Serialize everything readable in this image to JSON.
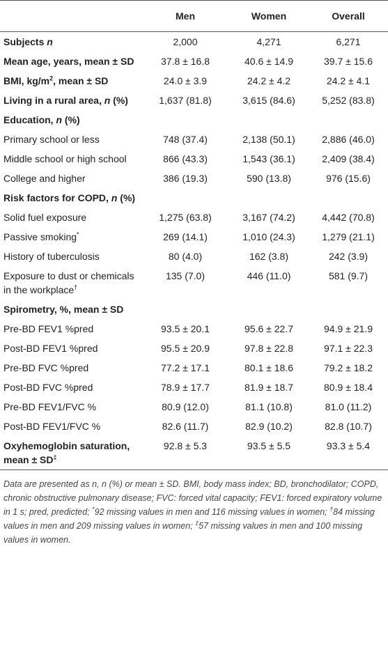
{
  "table": {
    "header": [
      "Men",
      "Women",
      "Overall"
    ],
    "rows": [
      {
        "bold": true,
        "label": [
          {
            "t": "Subjects "
          },
          {
            "i": "n"
          }
        ],
        "cells": [
          "2,000",
          "4,271",
          "6,271"
        ]
      },
      {
        "bold": true,
        "label": [
          {
            "t": "Mean age, years, mean ± SD"
          }
        ],
        "cells": [
          "37.8 ± 16.8",
          "40.6 ± 14.9",
          "39.7 ± 15.6"
        ]
      },
      {
        "bold": true,
        "label": [
          {
            "t": "BMI, kg/m"
          },
          {
            "sup": "2"
          },
          {
            "t": ", mean ± SD"
          }
        ],
        "cells": [
          "24.0 ± 3.9",
          "24.2 ± 4.2",
          "24.2 ± 4.1"
        ]
      },
      {
        "bold": true,
        "label": [
          {
            "t": "Living in a rural area, "
          },
          {
            "i": "n"
          },
          {
            "t": " (%)"
          }
        ],
        "cells": [
          "1,637 (81.8)",
          "3,615 (84.6)",
          "5,252 (83.8)"
        ]
      },
      {
        "bold": true,
        "label": [
          {
            "t": "Education, "
          },
          {
            "i": "n"
          },
          {
            "t": " (%)"
          }
        ],
        "cells": []
      },
      {
        "label": [
          {
            "t": "Primary school or less"
          }
        ],
        "cells": [
          "748 (37.4)",
          "2,138 (50.1)",
          "2,886 (46.0)"
        ]
      },
      {
        "label": [
          {
            "t": "Middle school or high school"
          }
        ],
        "cells": [
          "866 (43.3)",
          "1,543 (36.1)",
          "2,409 (38.4)"
        ]
      },
      {
        "label": [
          {
            "t": "College and higher"
          }
        ],
        "cells": [
          "386 (19.3)",
          "590 (13.8)",
          "976 (15.6)"
        ]
      },
      {
        "bold": true,
        "label": [
          {
            "t": "Risk factors for COPD, "
          },
          {
            "i": "n"
          },
          {
            "t": " (%)"
          }
        ],
        "cells": []
      },
      {
        "label": [
          {
            "t": "Solid fuel exposure"
          }
        ],
        "cells": [
          "1,275 (63.8)",
          "3,167 (74.2)",
          "4,442 (70.8)"
        ]
      },
      {
        "label": [
          {
            "t": "Passive smoking"
          },
          {
            "sup": "*"
          }
        ],
        "cells": [
          "269 (14.1)",
          "1,010 (24.3)",
          "1,279 (21.1)"
        ]
      },
      {
        "label": [
          {
            "t": "History of tuberculosis"
          }
        ],
        "cells": [
          "80 (4.0)",
          "162 (3.8)",
          "242 (3.9)"
        ]
      },
      {
        "label": [
          {
            "t": "Exposure to dust or chemicals in the workplace"
          },
          {
            "sup": "†"
          }
        ],
        "cells": [
          "135 (7.0)",
          "446 (11.0)",
          "581 (9.7)"
        ]
      },
      {
        "bold": true,
        "label": [
          {
            "t": "Spirometry, %, mean ± SD"
          }
        ],
        "cells": []
      },
      {
        "label": [
          {
            "t": "Pre-BD FEV1 %pred"
          }
        ],
        "cells": [
          "93.5 ± 20.1",
          "95.6 ± 22.7",
          "94.9 ± 21.9"
        ]
      },
      {
        "label": [
          {
            "t": "Post-BD FEV1 %pred"
          }
        ],
        "cells": [
          "95.5 ± 20.9",
          "97.8 ± 22.8",
          "97.1 ± 22.3"
        ]
      },
      {
        "label": [
          {
            "t": "Pre-BD FVC %pred"
          }
        ],
        "cells": [
          "77.2 ± 17.1",
          "80.1 ± 18.6",
          "79.2 ± 18.2"
        ]
      },
      {
        "label": [
          {
            "t": "Post-BD FVC %pred"
          }
        ],
        "cells": [
          "78.9 ± 17.7",
          "81.9 ± 18.7",
          "80.9 ± 18.4"
        ]
      },
      {
        "label": [
          {
            "t": "Pre-BD FEV1/FVC %"
          }
        ],
        "cells": [
          "80.9 (12.0)",
          "81.1 (10.8)",
          "81.0 (11.2)"
        ]
      },
      {
        "label": [
          {
            "t": "Post-BD FEV1/FVC %"
          }
        ],
        "cells": [
          "82.6 (11.7)",
          "82.9 (10.2)",
          "82.8 (10.7)"
        ]
      },
      {
        "bold": true,
        "label": [
          {
            "t": "Oxyhemoglobin saturation, mean ± SD"
          },
          {
            "sup": "‡"
          }
        ],
        "cells": [
          "92.8 ± 5.3",
          "93.5 ± 5.5",
          "93.3 ± 5.4"
        ]
      }
    ]
  },
  "footnote": [
    {
      "t": "Data are presented as n, n (%) or mean ± SD. BMI, body mass index; BD, bronchodilator; COPD, chronic obstructive pulmonary disease; FVC: forced vital capacity; FEV1: forced expiratory volume in 1 s; pred, predicted; "
    },
    {
      "sup": "*"
    },
    {
      "t": "92 missing values in men and 116 missing values in women; "
    },
    {
      "sup": "†"
    },
    {
      "t": "84 missing values in men and 209 missing values in women; "
    },
    {
      "sup": "‡"
    },
    {
      "t": "57 missing values in men and 100 missing values in women."
    }
  ]
}
